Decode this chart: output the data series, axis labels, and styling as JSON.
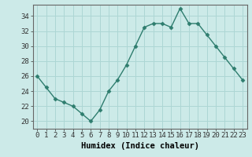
{
  "x": [
    0,
    1,
    2,
    3,
    4,
    5,
    6,
    7,
    8,
    9,
    10,
    11,
    12,
    13,
    14,
    15,
    16,
    17,
    18,
    19,
    20,
    21,
    22,
    23
  ],
  "y": [
    26.0,
    24.5,
    23.0,
    22.5,
    22.0,
    21.0,
    20.0,
    21.5,
    24.0,
    25.5,
    27.5,
    30.0,
    32.5,
    33.0,
    33.0,
    32.5,
    35.0,
    33.0,
    33.0,
    31.5,
    30.0,
    28.5,
    27.0,
    25.5
  ],
  "line_color": "#2e7d6e",
  "marker": "D",
  "marker_size": 2.5,
  "bg_color": "#cceae8",
  "grid_color": "#add6d4",
  "xlabel": "Humidex (Indice chaleur)",
  "xlim": [
    -0.5,
    23.5
  ],
  "ylim": [
    19.0,
    35.5
  ],
  "yticks": [
    20,
    22,
    24,
    26,
    28,
    30,
    32,
    34
  ],
  "xtick_labels": [
    "0",
    "1",
    "2",
    "3",
    "4",
    "5",
    "6",
    "7",
    "8",
    "9",
    "10",
    "11",
    "12",
    "13",
    "14",
    "15",
    "16",
    "17",
    "18",
    "19",
    "20",
    "21",
    "22",
    "23"
  ],
  "tick_fontsize": 6.5,
  "xlabel_fontsize": 7.5,
  "line_width": 1.0,
  "spine_color": "#666666"
}
